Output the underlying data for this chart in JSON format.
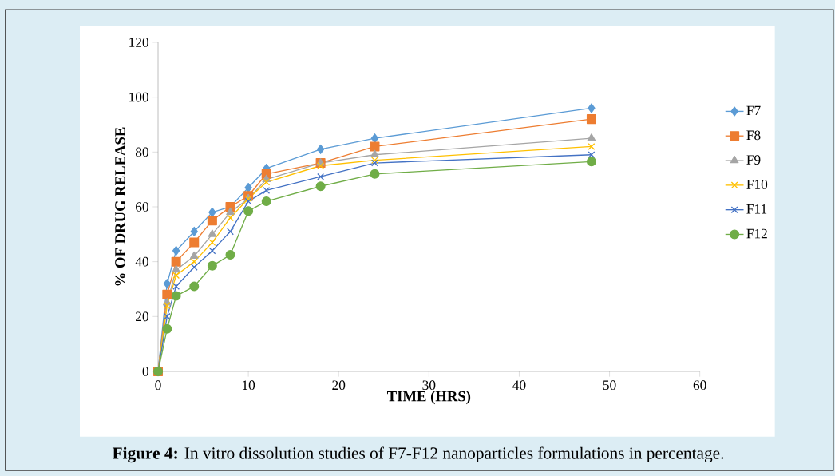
{
  "chart_data": {
    "type": "line",
    "xlabel": "TIME  (HRS)",
    "ylabel": "% OF DRUG RELEASE",
    "annotations": [
      "**Figure 4:** In vitro dissolution studies of F7-F12 nanoparticles formulations in percentage."
    ],
    "x": [
      0,
      1,
      2,
      4,
      6,
      8,
      10,
      12,
      18,
      24,
      48
    ],
    "series": [
      {
        "name": "F7",
        "color": "#5b9bd5",
        "marker": "diamond",
        "values": [
          0,
          32,
          44,
          51,
          58,
          60,
          67,
          74,
          81,
          85,
          96
        ]
      },
      {
        "name": "F8",
        "color": "#ed7d31",
        "marker": "square",
        "values": [
          0,
          28,
          40,
          47,
          55,
          60,
          64,
          72,
          76,
          82,
          92
        ]
      },
      {
        "name": "F9",
        "color": "#a5a5a5",
        "marker": "triangle",
        "values": [
          0,
          25,
          37,
          42,
          50,
          58,
          63,
          70,
          76,
          79,
          85
        ]
      },
      {
        "name": "F10",
        "color": "#ffc000",
        "marker": "cross",
        "values": [
          0,
          24,
          35,
          40,
          47,
          56,
          63,
          69,
          75,
          77,
          82
        ]
      },
      {
        "name": "F11",
        "color": "#4472c4",
        "marker": "cross",
        "values": [
          0,
          20,
          31,
          38,
          44,
          51,
          62,
          66,
          71,
          76,
          79
        ]
      },
      {
        "name": "F12",
        "color": "#70ad47",
        "marker": "circle",
        "values": [
          0,
          15.5,
          27.5,
          31,
          38.5,
          42.5,
          58.5,
          62,
          67.5,
          72,
          76.5
        ]
      }
    ],
    "xlim": [
      0,
      60
    ],
    "xticks": [
      0,
      10,
      20,
      30,
      40,
      50,
      60
    ],
    "ylim": [
      0,
      120
    ],
    "yticks": [
      0,
      20,
      40,
      60,
      80,
      100,
      120
    ],
    "grid": false,
    "legend": "right",
    "line_style": "solid"
  }
}
